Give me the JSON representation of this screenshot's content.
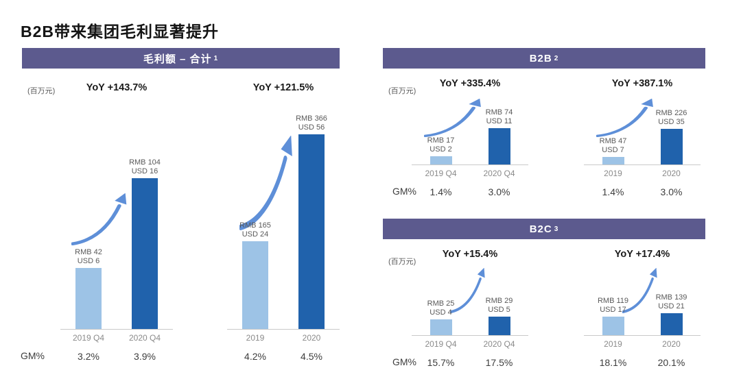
{
  "title": "B2B带来集团毛利显著提升",
  "unit_label": "(百万元)",
  "gm_label": "GM%",
  "colors": {
    "header_bg": "#5c5a8e",
    "bar_light": "#9dc3e6",
    "bar_dark": "#2062ac",
    "arrow": "#5e8fd8"
  },
  "chart_data": [
    {
      "type": "bar",
      "header": "毛利额 – 合计",
      "footnote": "1",
      "unit": "百万元",
      "groups": [
        {
          "yoy_label": "YoY +143.7%",
          "categories": [
            "2019 Q4",
            "2020 Q4"
          ],
          "bars": [
            {
              "rmb": 42,
              "usd": 6,
              "label_line1": "RMB 42",
              "label_line2": "USD 6",
              "gm_pct": "3.2%"
            },
            {
              "rmb": 104,
              "usd": 16,
              "label_line1": "RMB 104",
              "label_line2": "USD 16",
              "gm_pct": "3.9%"
            }
          ]
        },
        {
          "yoy_label": "YoY +121.5%",
          "categories": [
            "2019",
            "2020"
          ],
          "bars": [
            {
              "rmb": 165,
              "usd": 24,
              "label_line1": "RMB 165",
              "label_line2": "USD 24",
              "gm_pct": "4.2%"
            },
            {
              "rmb": 366,
              "usd": 56,
              "label_line1": "RMB 366",
              "label_line2": "USD 56",
              "gm_pct": "4.5%"
            }
          ]
        }
      ]
    },
    {
      "type": "bar",
      "header": "B2B",
      "footnote": "2",
      "unit": "百万元",
      "groups": [
        {
          "yoy_label": "YoY +335.4%",
          "categories": [
            "2019 Q4",
            "2020 Q4"
          ],
          "bars": [
            {
              "rmb": 17,
              "usd": 2,
              "label_line1": "RMB 17",
              "label_line2": "USD 2",
              "gm_pct": "1.4%"
            },
            {
              "rmb": 74,
              "usd": 11,
              "label_line1": "RMB 74",
              "label_line2": "USD 11",
              "gm_pct": "3.0%"
            }
          ]
        },
        {
          "yoy_label": "YoY +387.1%",
          "categories": [
            "2019",
            "2020"
          ],
          "bars": [
            {
              "rmb": 47,
              "usd": 7,
              "label_line1": "RMB 47",
              "label_line2": "USD 7",
              "gm_pct": "1.4%"
            },
            {
              "rmb": 226,
              "usd": 35,
              "label_line1": "RMB 226",
              "label_line2": "USD 35",
              "gm_pct": "3.0%"
            }
          ]
        }
      ]
    },
    {
      "type": "bar",
      "header": "B2C",
      "footnote": "3",
      "unit": "百万元",
      "groups": [
        {
          "yoy_label": "YoY +15.4%",
          "categories": [
            "2019 Q4",
            "2020 Q4"
          ],
          "bars": [
            {
              "rmb": 25,
              "usd": 4,
              "label_line1": "RMB 25",
              "label_line2": "USD 4",
              "gm_pct": "15.7%"
            },
            {
              "rmb": 29,
              "usd": 5,
              "label_line1": "RMB 29",
              "label_line2": "USD 5",
              "gm_pct": "17.5%"
            }
          ]
        },
        {
          "yoy_label": "YoY +17.4%",
          "categories": [
            "2019",
            "2020"
          ],
          "bars": [
            {
              "rmb": 119,
              "usd": 17,
              "label_line1": "RMB 119",
              "label_line2": "USD 17",
              "gm_pct": "18.1%"
            },
            {
              "rmb": 139,
              "usd": 21,
              "label_line1": "RMB 139",
              "label_line2": "USD 21",
              "gm_pct": "20.1%"
            }
          ]
        }
      ]
    }
  ]
}
